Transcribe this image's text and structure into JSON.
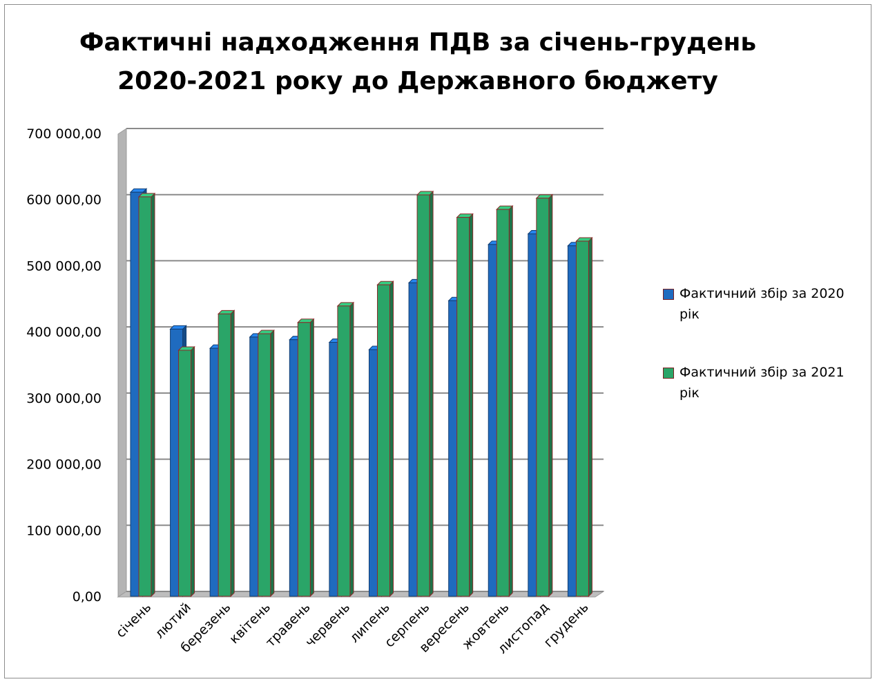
{
  "chart_data": {
    "type": "bar",
    "title": "Фактичні надходження ПДВ за січень-грудень 2020-2021 року до Державного бюджету",
    "categories": [
      "січень",
      "лютий",
      "березень",
      "квітень",
      "травень",
      "червень",
      "липень",
      "серпень",
      "вересень",
      "жовтень",
      "листопад",
      "грудень"
    ],
    "series": [
      {
        "name": "Фактичний збір за 2020 рік",
        "color": "#1f6bbf",
        "values": [
          612000,
          405000,
          376000,
          393000,
          389000,
          385000,
          374000,
          475000,
          448000,
          533000,
          549000,
          531000
        ]
      },
      {
        "name": "Фактичний збір за 2021 рік",
        "color": "#2aa568",
        "values": [
          605000,
          373000,
          428000,
          398000,
          415000,
          440000,
          472000,
          608000,
          574000,
          586000,
          603000,
          538000
        ]
      }
    ],
    "y_ticks": [
      "0,00",
      "100 000,00",
      "200 000,00",
      "300 000,00",
      "400 000,00",
      "500 000,00",
      "600 000,00",
      "700 000,00"
    ],
    "ylim": [
      0,
      700000
    ],
    "xlabel": "",
    "ylabel": "",
    "grid": true,
    "legend_position": "right"
  }
}
